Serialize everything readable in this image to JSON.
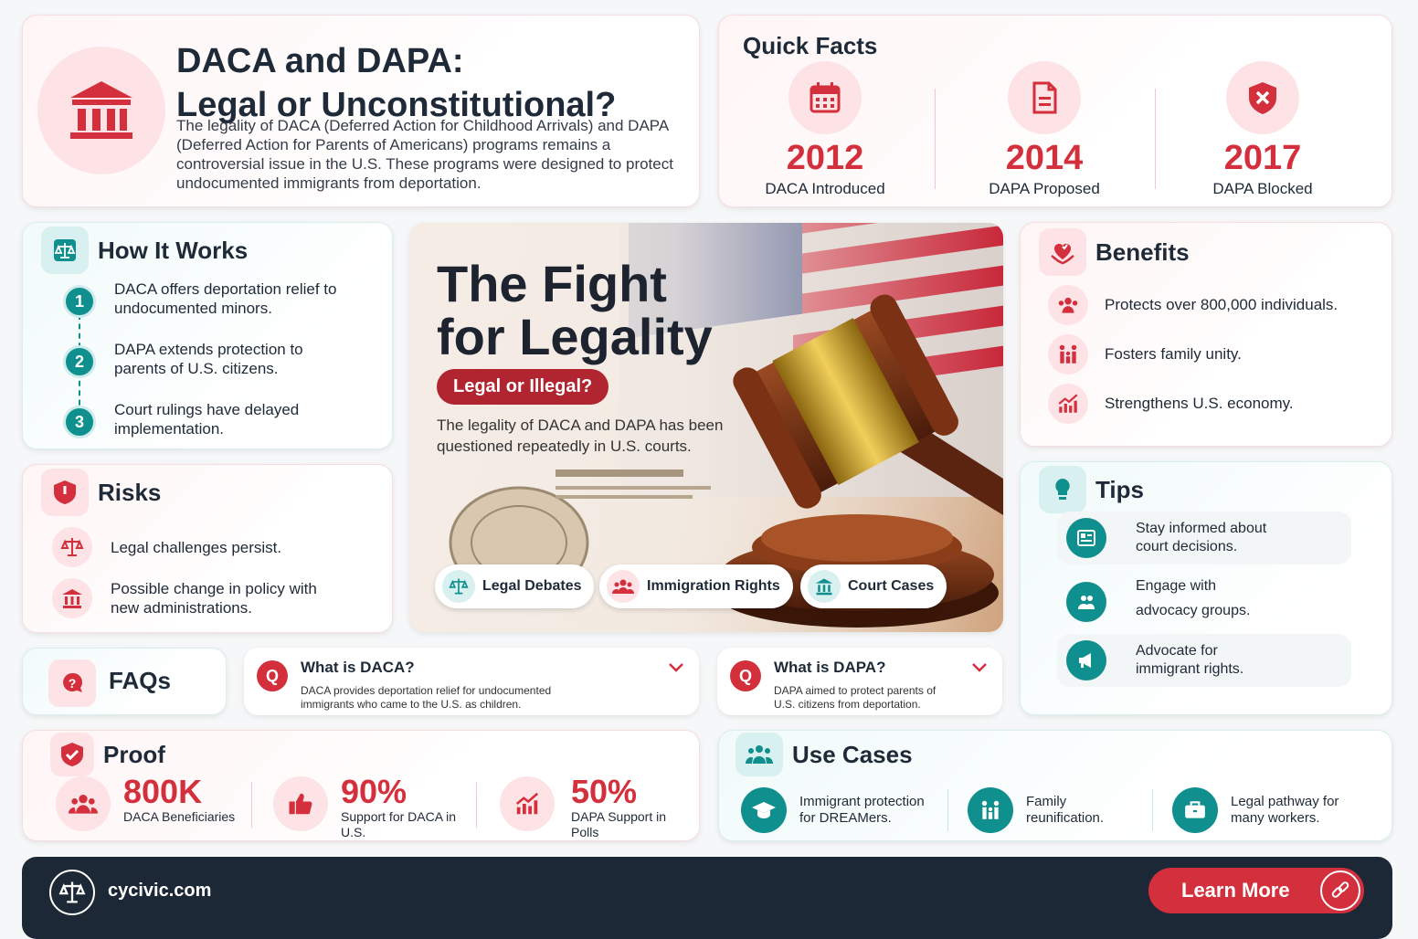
{
  "hero": {
    "title_line1": "DACA and DAPA:",
    "title_line2": "Legal or Unconstitutional?",
    "description": "The legality of DACA (Deferred Action for Childhood Arrivals) and DAPA (Deferred Action for Parents of Americans) programs remains a controversial issue in the U.S. These programs were designed to protect undocumented immigrants from deportation.",
    "icon": "courthouse-icon"
  },
  "quick_facts": {
    "title": "Quick Facts",
    "items": [
      {
        "year": "2012",
        "label": "DACA Introduced",
        "icon": "calendar-icon"
      },
      {
        "year": "2014",
        "label": "DAPA Proposed",
        "icon": "document-icon"
      },
      {
        "year": "2017",
        "label": "DAPA Blocked",
        "icon": "shield-x-icon"
      }
    ]
  },
  "how_it_works": {
    "title": "How It Works",
    "steps": [
      {
        "num": "1",
        "text": "DACA offers deportation relief to undocumented minors."
      },
      {
        "num": "2",
        "text": "DAPA extends protection to parents of U.S. citizens."
      },
      {
        "num": "3",
        "text": "Court rulings have delayed implementation."
      }
    ]
  },
  "risks": {
    "title": "Risks",
    "items": [
      {
        "text": "Legal challenges persist.",
        "icon": "scales-icon"
      },
      {
        "text": "Possible change in policy with new administrations.",
        "icon": "courthouse-icon"
      }
    ]
  },
  "feature": {
    "title_line1": "The Fight",
    "title_line2": "for Legality",
    "pill": "Legal or Illegal?",
    "description": "The legality of DACA and DAPA has been questioned repeatedly in U.S. courts.",
    "tags": [
      "Legal Debates",
      "Immigration Rights",
      "Court Cases"
    ]
  },
  "benefits": {
    "title": "Benefits",
    "items": [
      {
        "text": "Protects over 800,000 individuals.",
        "icon": "people-icon"
      },
      {
        "text": "Fosters family unity.",
        "icon": "family-icon"
      },
      {
        "text": "Strengthens U.S. economy.",
        "icon": "growth-chart-icon"
      }
    ]
  },
  "tips": {
    "title": "Tips",
    "items": [
      {
        "text": "Stay informed about court decisions.",
        "icon": "newspaper-icon"
      },
      {
        "text_line1": "Engage with",
        "text_line2": "advocacy groups.",
        "icon": "group-icon"
      },
      {
        "text": "Advocate for immigrant rights.",
        "icon": "megaphone-icon"
      }
    ]
  },
  "faqs": {
    "title": "FAQs",
    "items": [
      {
        "q": "Q",
        "question": "What is DACA?",
        "answer": "DACA provides deportation relief for undocumented immigrants who came to the U.S. as children."
      },
      {
        "q": "Q",
        "question": "What is DAPA?",
        "answer": "DAPA aimed to protect parents of U.S. citizens from deportation."
      }
    ]
  },
  "proof": {
    "title": "Proof",
    "stats": [
      {
        "value": "800K",
        "label": "DACA Beneficiaries",
        "icon": "people-icon"
      },
      {
        "value": "90%",
        "label": "Support for DACA in U.S.",
        "icon": "thumbs-up-icon"
      },
      {
        "value": "50%",
        "label": "DAPA Support in Polls",
        "icon": "growth-chart-icon"
      }
    ]
  },
  "use_cases": {
    "title": "Use Cases",
    "items": [
      {
        "text": "Immigrant protection for DREAMers.",
        "icon": "graduation-cap-icon"
      },
      {
        "text": "Family reunification.",
        "icon": "family-icon"
      },
      {
        "text": "Legal pathway for many workers.",
        "icon": "briefcase-icon"
      }
    ]
  },
  "footer": {
    "site": "cycivic.com",
    "button": "Learn More"
  },
  "colors": {
    "accent_red": "#d42f3c",
    "accent_teal": "#0f8f8d",
    "footer_bg": "#1d2836"
  }
}
